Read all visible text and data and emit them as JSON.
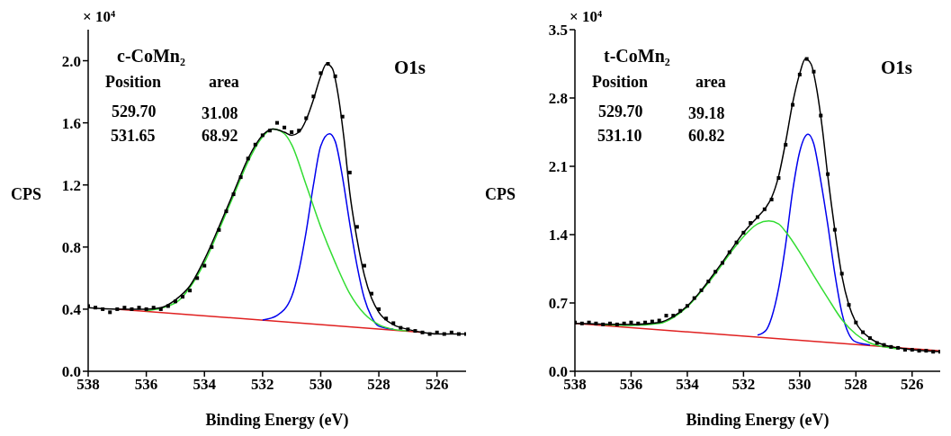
{
  "chart_data": [
    {
      "type": "line",
      "xlabel": "Binding Energy (eV)",
      "ylabel": "CPS",
      "annotations": [
        "× 10⁴",
        "c-CoMn₂",
        "Position",
        "area",
        "529.70",
        "31.08",
        "531.65",
        "68.92",
        "O1s"
      ],
      "xlim": [
        538,
        525
      ],
      "xticks": [
        538,
        536,
        534,
        532,
        530,
        528,
        526
      ],
      "ylim": [
        0,
        2.2
      ],
      "yticks": [
        {
          "value": 0,
          "label": "0.0"
        },
        {
          "value": 0.4,
          "label": "0.4"
        },
        {
          "value": 0.8,
          "label": "0.8"
        },
        {
          "value": 1.2,
          "label": "1.2"
        },
        {
          "value": 1.6,
          "label": "1.6"
        },
        {
          "value": 2.0,
          "label": "2.0"
        }
      ],
      "series": [
        {
          "color": "#e02020",
          "x": [
            537,
            526.5
          ],
          "values": [
            0.4,
            0.25
          ]
        },
        {
          "color": "#0000ee",
          "x": [
            532,
            531.5,
            531,
            530.75,
            530.5,
            530.25,
            530,
            529.7,
            529.5,
            529.25,
            529,
            528.75,
            528.5,
            528.25,
            528,
            527.5
          ],
          "values": [
            0.33,
            0.36,
            0.48,
            0.65,
            0.9,
            1.2,
            1.45,
            1.53,
            1.48,
            1.25,
            0.95,
            0.68,
            0.47,
            0.35,
            0.29,
            0.27
          ]
        },
        {
          "color": "#33dd33",
          "x": [
            536,
            535,
            534.5,
            534,
            533.5,
            533,
            532.5,
            532,
            531.65,
            531.25,
            531,
            530.5,
            530,
            529.5,
            529,
            528.5,
            528,
            527.5,
            527
          ],
          "values": [
            0.39,
            0.44,
            0.54,
            0.7,
            0.91,
            1.13,
            1.35,
            1.51,
            1.56,
            1.53,
            1.46,
            1.2,
            0.93,
            0.7,
            0.5,
            0.37,
            0.3,
            0.27,
            0.26
          ]
        },
        {
          "color": "#000000",
          "x": [
            538,
            537,
            536,
            535.5,
            535,
            534.5,
            534,
            533.5,
            533,
            532.5,
            532,
            531.65,
            531.25,
            531,
            530.75,
            530.5,
            530.25,
            530,
            529.8,
            529.6,
            529.4,
            529.2,
            529,
            528.75,
            528.5,
            528.25,
            528,
            527.5,
            527,
            526.5,
            526,
            525
          ],
          "values": [
            0.41,
            0.4,
            0.4,
            0.41,
            0.46,
            0.55,
            0.72,
            0.93,
            1.15,
            1.37,
            1.52,
            1.56,
            1.54,
            1.52,
            1.54,
            1.62,
            1.75,
            1.9,
            1.98,
            1.95,
            1.78,
            1.5,
            1.15,
            0.85,
            0.62,
            0.47,
            0.38,
            0.3,
            0.27,
            0.25,
            0.24,
            0.24
          ]
        },
        {
          "type": "scatter",
          "marker": "square",
          "color": "#000000",
          "x": [
            538,
            537.75,
            537.5,
            537.25,
            537,
            536.75,
            536.5,
            536.25,
            536,
            535.75,
            535.5,
            535.25,
            535,
            534.75,
            534.5,
            534.25,
            534,
            533.75,
            533.5,
            533.25,
            533,
            532.75,
            532.5,
            532.25,
            532,
            531.75,
            531.5,
            531.25,
            531,
            530.75,
            530.5,
            530.25,
            530,
            529.75,
            529.5,
            529.25,
            529,
            528.75,
            528.5,
            528.25,
            528,
            527.75,
            527.5,
            527.25,
            527,
            526.75,
            526.5,
            526.25,
            526,
            525.75,
            525.5,
            525.25,
            525
          ],
          "values": [
            0.42,
            0.41,
            0.4,
            0.38,
            0.4,
            0.41,
            0.4,
            0.41,
            0.4,
            0.41,
            0.4,
            0.42,
            0.45,
            0.48,
            0.52,
            0.6,
            0.68,
            0.8,
            0.91,
            1.03,
            1.14,
            1.25,
            1.37,
            1.46,
            1.52,
            1.55,
            1.6,
            1.57,
            1.54,
            1.55,
            1.63,
            1.77,
            1.92,
            1.98,
            1.9,
            1.64,
            1.28,
            0.93,
            0.68,
            0.5,
            0.4,
            0.34,
            0.31,
            0.28,
            0.27,
            0.26,
            0.25,
            0.24,
            0.25,
            0.24,
            0.25,
            0.24,
            0.24
          ]
        }
      ]
    },
    {
      "type": "line",
      "xlabel": "Binding Energy (eV)",
      "ylabel": "CPS",
      "annotations": [
        "× 10⁴",
        "t-CoMn₂",
        "Position",
        "area",
        "529.70",
        "39.18",
        "531.10",
        "60.82",
        "O1s"
      ],
      "xlim": [
        538,
        525
      ],
      "xticks": [
        538,
        536,
        534,
        532,
        530,
        528,
        526
      ],
      "ylim": [
        0,
        3.5
      ],
      "yticks": [
        {
          "value": 0,
          "label": "0.0"
        },
        0.7,
        1.4,
        2.1,
        2.8,
        3.5
      ],
      "series": [
        {
          "color": "#e02020",
          "x": [
            538,
            525
          ],
          "values": [
            0.49,
            0.21
          ]
        },
        {
          "color": "#0000ee",
          "x": [
            531.5,
            531.2,
            531,
            530.75,
            530.5,
            530.25,
            530,
            529.7,
            529.5,
            529.25,
            529,
            528.75,
            528.5,
            528.25,
            528,
            527.5
          ],
          "values": [
            0.37,
            0.42,
            0.55,
            0.85,
            1.3,
            1.85,
            2.25,
            2.43,
            2.33,
            1.95,
            1.5,
            1.0,
            0.6,
            0.38,
            0.3,
            0.27
          ]
        },
        {
          "color": "#33dd33",
          "x": [
            537,
            536,
            535,
            534.5,
            534,
            533.5,
            533,
            532.5,
            532,
            531.5,
            531.1,
            530.75,
            530.5,
            530,
            529.5,
            529,
            528.5,
            528,
            527.5,
            527,
            526.5
          ],
          "values": [
            0.48,
            0.47,
            0.49,
            0.55,
            0.66,
            0.82,
            1.0,
            1.2,
            1.38,
            1.51,
            1.54,
            1.51,
            1.43,
            1.22,
            0.98,
            0.75,
            0.53,
            0.38,
            0.29,
            0.25,
            0.23
          ]
        },
        {
          "color": "#000000",
          "x": [
            538,
            536,
            535,
            534.5,
            534,
            533.5,
            533,
            532.5,
            532,
            531.5,
            531.2,
            531,
            530.75,
            530.5,
            530.25,
            530,
            529.8,
            529.6,
            529.4,
            529.2,
            529,
            528.75,
            528.5,
            528.25,
            528,
            527.5,
            527,
            526.5,
            526,
            525
          ],
          "values": [
            0.49,
            0.48,
            0.5,
            0.56,
            0.67,
            0.83,
            1.02,
            1.22,
            1.42,
            1.58,
            1.68,
            1.78,
            2.0,
            2.35,
            2.75,
            3.05,
            3.2,
            3.15,
            2.9,
            2.5,
            2.0,
            1.45,
            0.98,
            0.68,
            0.5,
            0.34,
            0.27,
            0.24,
            0.22,
            0.2
          ]
        },
        {
          "type": "scatter",
          "marker": "square",
          "color": "#000000",
          "x": [
            538,
            537.75,
            537.5,
            537.25,
            537,
            536.75,
            536.5,
            536.25,
            536,
            535.75,
            535.5,
            535.25,
            535,
            534.75,
            534.5,
            534.25,
            534,
            533.75,
            533.5,
            533.25,
            533,
            532.75,
            532.5,
            532.25,
            532,
            531.75,
            531.5,
            531.25,
            531,
            530.75,
            530.5,
            530.25,
            530,
            529.75,
            529.5,
            529.25,
            529,
            528.75,
            528.5,
            528.25,
            528,
            527.75,
            527.5,
            527.25,
            527,
            526.75,
            526.5,
            526.25,
            526,
            525.75,
            525.5,
            525.25,
            525
          ],
          "values": [
            0.5,
            0.49,
            0.5,
            0.49,
            0.48,
            0.49,
            0.48,
            0.49,
            0.5,
            0.49,
            0.5,
            0.51,
            0.52,
            0.57,
            0.57,
            0.62,
            0.67,
            0.75,
            0.83,
            0.92,
            1.02,
            1.11,
            1.22,
            1.32,
            1.42,
            1.52,
            1.58,
            1.66,
            1.76,
            1.98,
            2.32,
            2.73,
            3.04,
            3.2,
            3.07,
            2.62,
            2.02,
            1.45,
            1.0,
            0.68,
            0.5,
            0.4,
            0.34,
            0.29,
            0.27,
            0.25,
            0.24,
            0.22,
            0.22,
            0.21,
            0.21,
            0.2,
            0.2
          ]
        }
      ]
    }
  ]
}
